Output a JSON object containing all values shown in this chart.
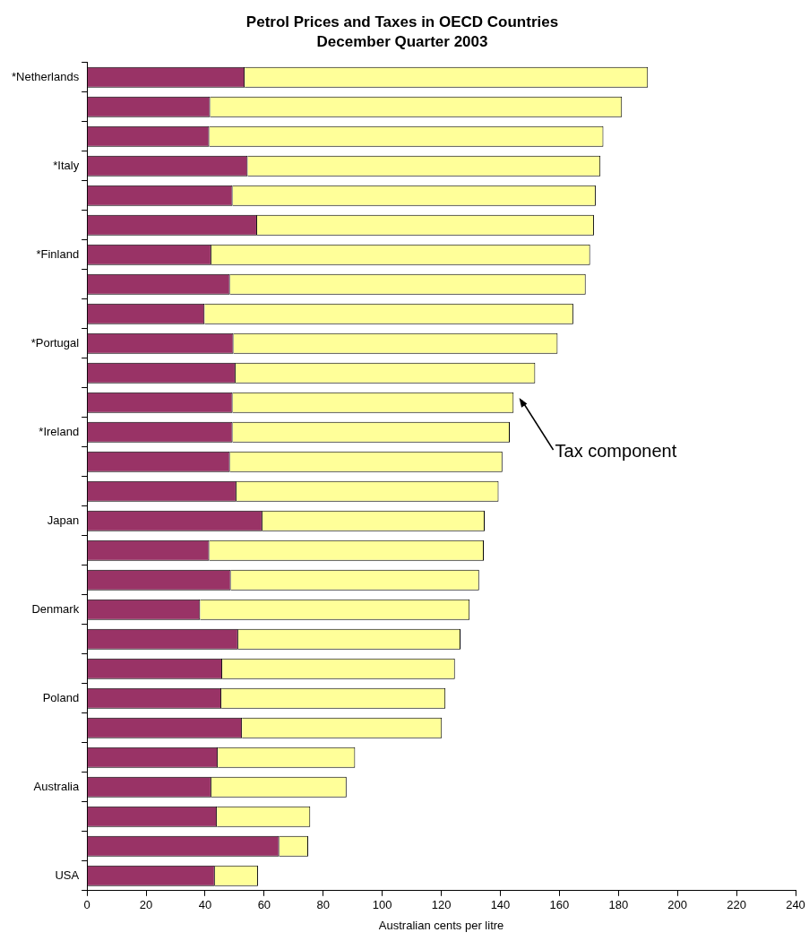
{
  "chart_data": {
    "type": "bar",
    "orientation": "horizontal",
    "stacked": true,
    "title": "Petrol Prices and Taxes in OECD Countries",
    "subtitle": "December Quarter 2003",
    "xlabel": "Australian cents per litre",
    "categories": [
      "*Netherlands",
      null,
      null,
      "*Italy",
      null,
      null,
      "*Finland",
      null,
      null,
      "*Portugal",
      null,
      null,
      "*Ireland",
      null,
      null,
      "Japan",
      null,
      null,
      "Denmark",
      null,
      null,
      "Poland",
      null,
      null,
      "Australia",
      null,
      null,
      "USA"
    ],
    "series": [
      {
        "color": "#993366",
        "values": [
          53.4,
          41.7,
          41.4,
          54.4,
          49.3,
          57.6,
          42.1,
          48.4,
          39.8,
          49.6,
          50.3,
          49.3,
          49.3,
          48.4,
          50.6,
          59.4,
          41.4,
          48.7,
          38.3,
          51.2,
          45.8,
          45.5,
          52.5,
          44.3,
          42.1,
          44.0,
          65.1,
          43.3
        ]
      },
      {
        "color": "#ffff99",
        "values": [
          136.6,
          139.5,
          133.5,
          119.5,
          123.0,
          114.1,
          128.3,
          120.5,
          124.9,
          109.8,
          101.5,
          95.2,
          93.9,
          92.3,
          88.8,
          75.3,
          93.0,
          84.1,
          91.3,
          75.3,
          78.8,
          75.9,
          67.7,
          46.5,
          45.8,
          31.6,
          9.8,
          14.6
        ]
      }
    ],
    "xlim": [
      0,
      240
    ],
    "xticks": [
      0,
      20,
      40,
      60,
      80,
      100,
      120,
      140,
      160,
      180,
      200,
      220,
      240
    ],
    "grid": false,
    "legend": false,
    "annotations": [
      "Tax component"
    ]
  }
}
